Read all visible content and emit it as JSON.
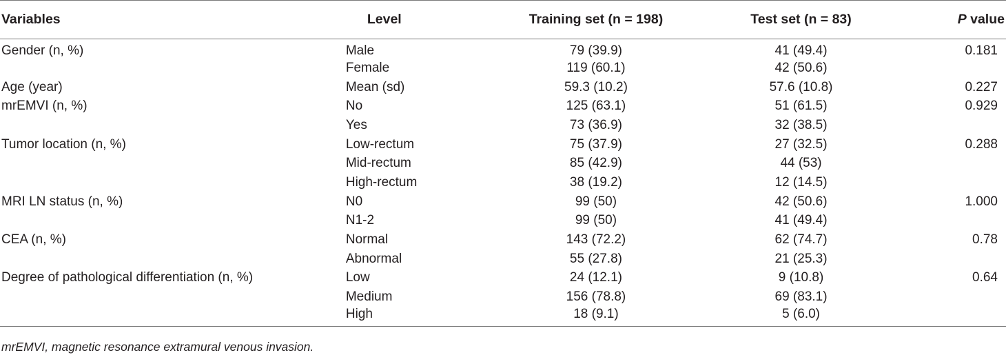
{
  "table": {
    "headers": {
      "variables": "Variables",
      "level": "Level",
      "training": "Training set (n = 198)",
      "test": "Test set (n = 83)",
      "p_italic": "P",
      "p_rest": " value"
    },
    "rows": [
      {
        "variable": "Gender (n, %)",
        "level": "Male",
        "training": "79 (39.9)",
        "test": "41 (49.4)",
        "p": "0.181"
      },
      {
        "variable": "",
        "level": "Female",
        "training": "119 (60.1)",
        "test": "42 (50.6)",
        "p": ""
      },
      {
        "variable": "Age (year)",
        "level": "Mean (sd)",
        "training": "59.3 (10.2)",
        "test": "57.6 (10.8)",
        "p": "0.227"
      },
      {
        "variable": "mrEMVI (n, %)",
        "level": "No",
        "training": "125 (63.1)",
        "test": "51 (61.5)",
        "p": "0.929"
      },
      {
        "variable": "",
        "level": "Yes",
        "training": "73 (36.9)",
        "test": "32 (38.5)",
        "p": ""
      },
      {
        "variable": "Tumor location (n, %)",
        "level": "Low-rectum",
        "training": "75 (37.9)",
        "test": "27 (32.5)",
        "p": "0.288"
      },
      {
        "variable": "",
        "level": "Mid-rectum",
        "training": "85 (42.9)",
        "test": "44 (53)",
        "p": ""
      },
      {
        "variable": "",
        "level": "High-rectum",
        "training": "38 (19.2)",
        "test": "12 (14.5)",
        "p": ""
      },
      {
        "variable": "MRI LN status (n, %)",
        "level": "N0",
        "training": "99 (50)",
        "test": "42 (50.6)",
        "p": "1.000"
      },
      {
        "variable": "",
        "level": "N1-2",
        "training": "99 (50)",
        "test": "41 (49.4)",
        "p": ""
      },
      {
        "variable": "CEA (n, %)",
        "level": "Normal",
        "training": "143 (72.2)",
        "test": "62 (74.7)",
        "p": "0.78"
      },
      {
        "variable": "",
        "level": "Abnormal",
        "training": "55 (27.8)",
        "test": "21 (25.3)",
        "p": ""
      },
      {
        "variable": "Degree of pathological differentiation (n, %)",
        "level": "Low",
        "training": "24 (12.1)",
        "test": "9 (10.8)",
        "p": "0.64"
      },
      {
        "variable": "",
        "level": "Medium",
        "training": "156 (78.8)",
        "test": "69 (83.1)",
        "p": ""
      },
      {
        "variable": "",
        "level": "High",
        "training": "18 (9.1)",
        "test": "5 (6.0)",
        "p": ""
      }
    ]
  },
  "footnote": "mrEMVI, magnetic resonance extramural venous invasion."
}
